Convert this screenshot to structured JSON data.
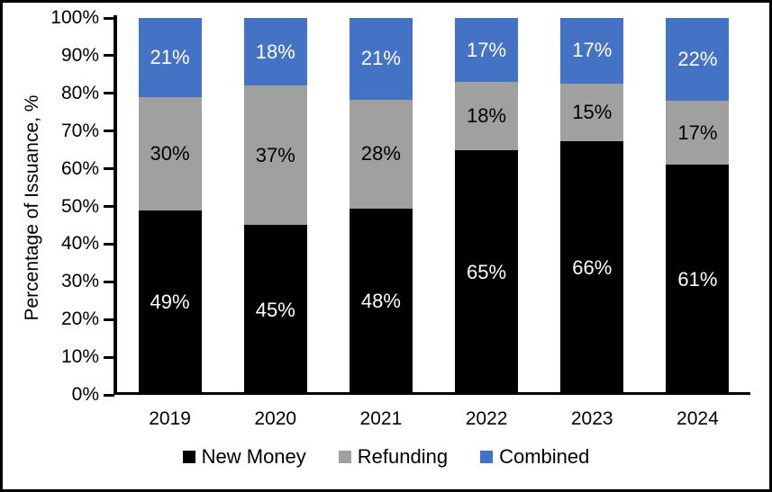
{
  "figure": {
    "background_color": "#FFFFFF",
    "border_color": "#000000"
  },
  "chart_data": {
    "type": "bar",
    "stacked": true,
    "title": "",
    "xlabel": "",
    "ylabel": "Percentage of Issuance, %",
    "ylim": [
      0,
      100
    ],
    "ytick_step": 10,
    "ytick_suffix": "%",
    "grid": false,
    "legend_position": "bottom",
    "categories": [
      "2019",
      "2020",
      "2021",
      "2022",
      "2023",
      "2024"
    ],
    "series": [
      {
        "name": "New Money",
        "color": "#000000",
        "label_color": "#FFFFFF",
        "values": [
          49,
          45,
          48,
          65,
          66,
          61
        ],
        "labels": [
          "49%",
          "45%",
          "48%",
          "65%",
          "66%",
          "61%"
        ]
      },
      {
        "name": "Refunding",
        "color": "#A0A0A0",
        "label_color": "#000000",
        "values": [
          30,
          37,
          28,
          18,
          15,
          17
        ],
        "labels": [
          "30%",
          "37%",
          "28%",
          "18%",
          "15%",
          "17%"
        ]
      },
      {
        "name": "Combined",
        "color": "#4472C4",
        "label_color": "#FFFFFF",
        "values": [
          21,
          18,
          21,
          17,
          17,
          22
        ],
        "labels": [
          "21%",
          "18%",
          "21%",
          "17%",
          "17%",
          "22%"
        ]
      }
    ]
  }
}
